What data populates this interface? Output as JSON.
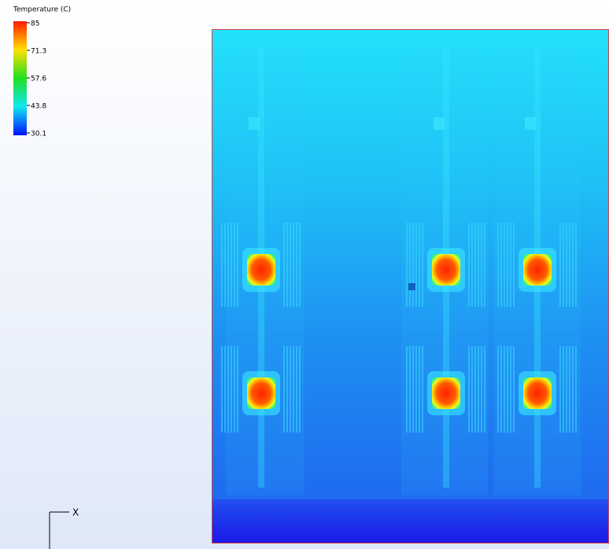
{
  "legend": {
    "title": "Temperature (C)",
    "ticks": [
      "85",
      "71.3",
      "57.6",
      "43.8",
      "30.1"
    ]
  },
  "axis_indicator": {
    "label": "X"
  }
}
